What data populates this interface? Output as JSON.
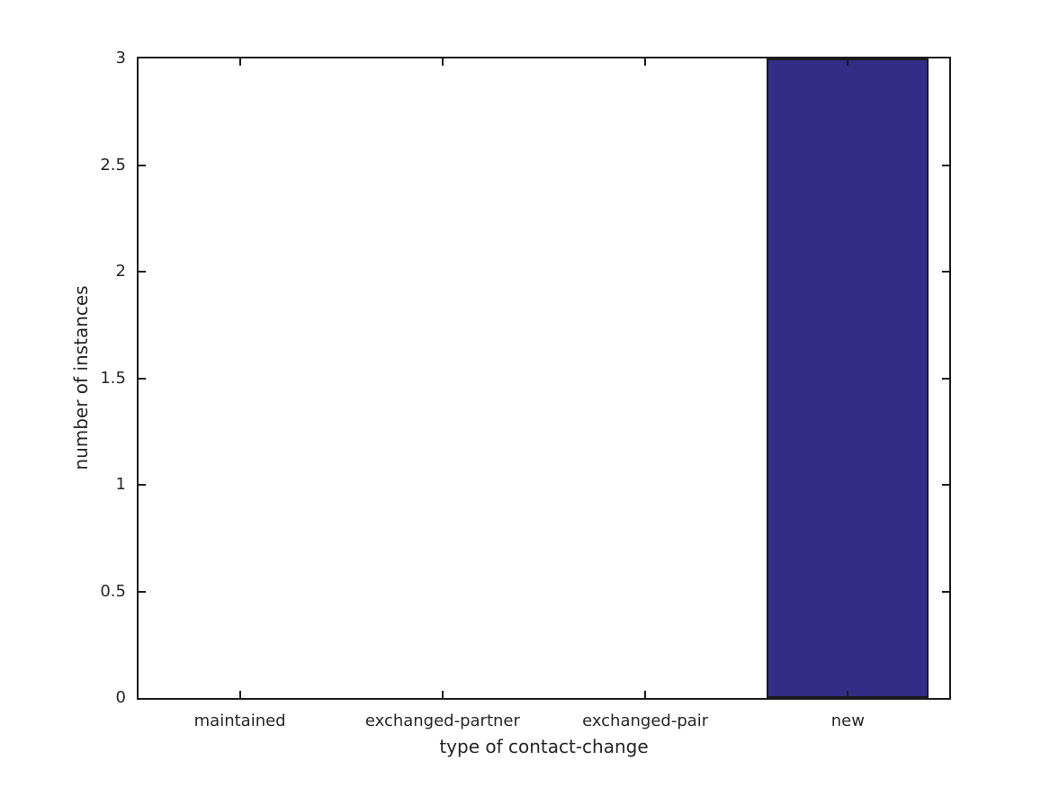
{
  "figure": {
    "background": "#ffffff"
  },
  "chart_data": {
    "type": "bar",
    "title": "",
    "xlabel": "type of contact-change",
    "ylabel": "number of instances",
    "categories": [
      "maintained",
      "exchanged-partner",
      "exchanged-pair",
      "new"
    ],
    "values": [
      0,
      0,
      0,
      3
    ],
    "ylim": [
      0,
      3
    ],
    "yticks": [
      0,
      0.5,
      1,
      1.5,
      2,
      2.5,
      3
    ],
    "ytick_labels": [
      "0",
      "0.5",
      "1",
      "1.5",
      "2",
      "2.5",
      "3"
    ],
    "grid": false,
    "legend": null,
    "box": true,
    "ticks_mirrored_inward": true,
    "bar_width_fraction": 0.8,
    "colors": {
      "bar_fill": "#342c86",
      "bar_edge": "#1a1a1a",
      "axis": "#1c1c1c",
      "text": "#262626",
      "background": "#ffffff"
    }
  }
}
